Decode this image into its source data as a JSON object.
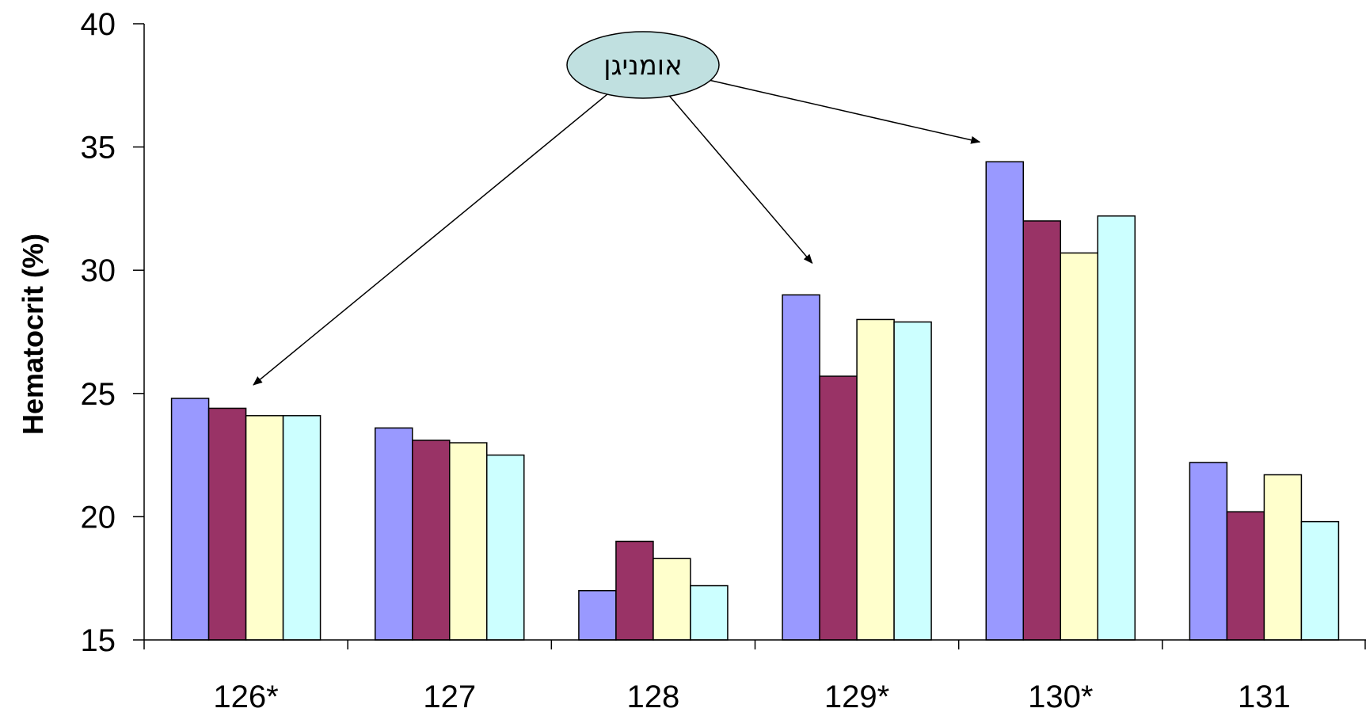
{
  "chart_data": {
    "type": "bar",
    "title": "",
    "xlabel": "",
    "ylabel": "Hematocrit (%)",
    "ylim": [
      15,
      40
    ],
    "yticks": [
      15,
      20,
      25,
      30,
      35,
      40
    ],
    "grid": false,
    "categories": [
      "126*",
      "127",
      "128",
      "129*",
      "130*",
      "131"
    ],
    "series": [
      {
        "color": "#9999ff",
        "values": [
          24.8,
          23.6,
          17.0,
          29.0,
          34.4,
          22.2
        ]
      },
      {
        "color": "#993366",
        "values": [
          24.4,
          23.1,
          19.0,
          25.7,
          32.0,
          20.2
        ]
      },
      {
        "color": "#ffffcc",
        "values": [
          24.1,
          23.0,
          18.3,
          28.0,
          30.7,
          21.7
        ]
      },
      {
        "color": "#ccffff",
        "values": [
          24.1,
          22.5,
          17.2,
          27.9,
          32.2,
          19.8
        ]
      }
    ],
    "annotation": {
      "text": "אומניגן",
      "fill": "#c0e0e0",
      "targets": [
        "126*",
        "129*",
        "130*"
      ]
    }
  }
}
